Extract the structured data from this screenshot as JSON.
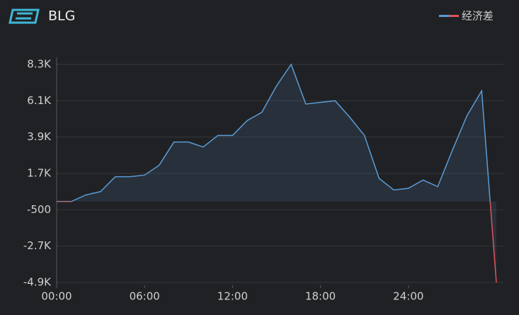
{
  "chart_data": {
    "type": "area",
    "title": "BLG",
    "x": [
      0,
      1,
      2,
      3,
      4,
      5,
      6,
      7,
      8,
      9,
      10,
      11,
      12,
      13,
      14,
      15,
      16,
      17,
      18,
      19,
      20,
      21,
      22,
      23,
      24,
      25,
      26,
      27,
      28,
      29,
      30
    ],
    "series": [
      {
        "name": "经济差",
        "color": "#5b9bd5",
        "negative_color": "#e0525a",
        "values": [
          0,
          0,
          400,
          600,
          1500,
          1500,
          1600,
          2200,
          3600,
          3600,
          3300,
          4000,
          4000,
          4900,
          5400,
          7000,
          8300,
          5900,
          6000,
          6100,
          5100,
          4000,
          1400,
          700,
          800,
          1300,
          900,
          3100,
          5200,
          6700,
          -4900
        ]
      }
    ],
    "xlim": [
      0,
      30
    ],
    "xticks": [
      {
        "value": 0,
        "label": "00:00"
      },
      {
        "value": 6,
        "label": "06:00"
      },
      {
        "value": 12,
        "label": "12:00"
      },
      {
        "value": 18,
        "label": "18:00"
      },
      {
        "value": 24,
        "label": "24:00"
      }
    ],
    "ylim": [
      -4900,
      8300
    ],
    "yticks": [
      {
        "value": -4900,
        "label": "-4.9K"
      },
      {
        "value": -2700,
        "label": "-2.7K"
      },
      -500,
      {
        "value": 1700,
        "label": "1.7K"
      },
      {
        "value": 3900,
        "label": "3.9K"
      },
      {
        "value": 6100,
        "label": "6.1K"
      },
      {
        "value": 8300,
        "label": "8.3K"
      }
    ],
    "grid": true,
    "legend": "top-right"
  }
}
